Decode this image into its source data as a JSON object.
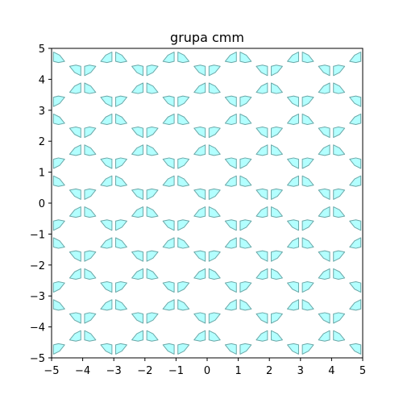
{
  "chart_data": {
    "type": "scatter",
    "title": "grupa cmm",
    "xlabel": "",
    "ylabel": "",
    "xlim": [
      -5,
      5
    ],
    "ylim": [
      -5,
      5
    ],
    "x_ticks": [
      -5,
      -4,
      -3,
      -2,
      -1,
      0,
      1,
      2,
      3,
      4,
      5
    ],
    "y_ticks": [
      -5,
      -4,
      -3,
      -2,
      -1,
      0,
      1,
      2,
      3,
      4,
      5
    ],
    "x_tick_labels": [
      "−5",
      "−4",
      "−3",
      "−2",
      "−1",
      "0",
      "1",
      "2",
      "3",
      "4",
      "5"
    ],
    "y_tick_labels": [
      "−5",
      "−4",
      "−3",
      "−2",
      "−1",
      "0",
      "1",
      "2",
      "3",
      "4",
      "5"
    ],
    "grid": false,
    "motif": {
      "shape": [
        [
          0.06,
          0.42
        ],
        [
          0.06,
          0.12
        ],
        [
          0.26,
          0.22
        ],
        [
          0.42,
          0.42
        ],
        [
          0.22,
          0.46
        ]
      ],
      "lattice_vectors": [
        [
          1,
          1
        ],
        [
          1,
          -1
        ]
      ],
      "fill_color": "#b3ffff",
      "edge_color": "#6aa8a8"
    }
  }
}
